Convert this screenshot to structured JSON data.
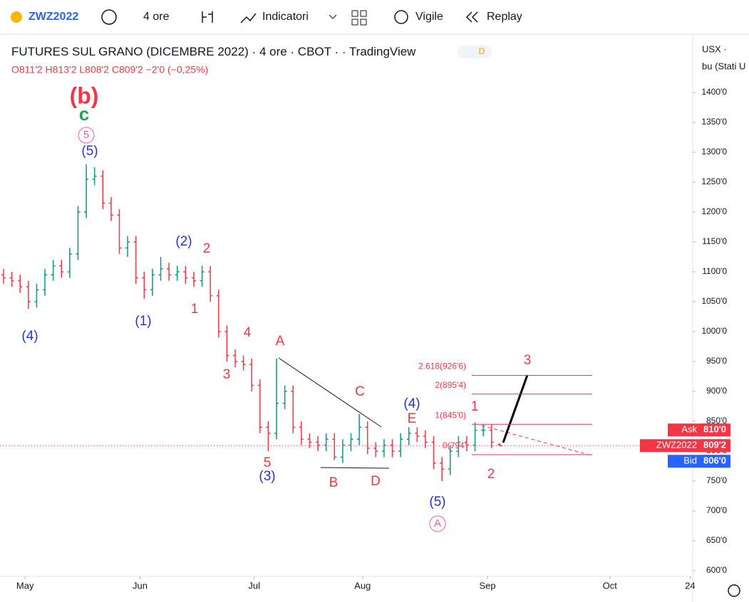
{
  "toolbar": {
    "symbol": "ZWZ2022",
    "interval": "4 ore",
    "indicators": "Indicatori",
    "alert": "Vigile",
    "replay": "Replay"
  },
  "legend": {
    "title": "FUTURES SUL GRANO (DICEMBRE 2022)",
    "interval": "4 ore",
    "exchange": "CBOT",
    "source": "TradingView",
    "badge": "D",
    "ohlc": "O811'2 H813'2 L808'2 C809'2 −2'0 (−0,25%)"
  },
  "price_axis": {
    "currency": "USX ·",
    "unit": "bu (Stati U"
  },
  "chart_data": {
    "type": "ohlc",
    "up_color": "#089981",
    "down_color": "#f23645",
    "xlim": [
      0,
      83.4
    ],
    "ylim": [
      600,
      1400
    ],
    "yticks": [
      {
        "value": 1400,
        "label": "1400'0"
      },
      {
        "value": 1350,
        "label": "1350'0"
      },
      {
        "value": 1300,
        "label": "1300'0"
      },
      {
        "value": 1250,
        "label": "1250'0"
      },
      {
        "value": 1200,
        "label": "1200'0"
      },
      {
        "value": 1150,
        "label": "1150'0"
      },
      {
        "value": 1100,
        "label": "1100'0"
      },
      {
        "value": 1050,
        "label": "1050'0"
      },
      {
        "value": 1000,
        "label": "1000'0"
      },
      {
        "value": 950,
        "label": "950'0"
      },
      {
        "value": 900,
        "label": "900'0"
      },
      {
        "value": 850,
        "label": "850'0"
      },
      {
        "value": 800,
        "label": "800'0"
      },
      {
        "value": 750,
        "label": "750'0"
      },
      {
        "value": 700,
        "label": "700'0"
      },
      {
        "value": 650,
        "label": "650'0"
      },
      {
        "value": 600,
        "label": "600'0"
      }
    ],
    "xticks": [
      {
        "value": 2.6,
        "label": "May"
      },
      {
        "value": 16.5,
        "label": "Jun"
      },
      {
        "value": 30.3,
        "label": "Jul"
      },
      {
        "value": 43.4,
        "label": "Aug"
      },
      {
        "value": 58.5,
        "label": "Sep"
      },
      {
        "value": 73.3,
        "label": "Oct"
      },
      {
        "value": 83,
        "label": "24"
      }
    ],
    "open": [
      1095,
      1090,
      1085,
      1075,
      1050,
      1070,
      1095,
      1110,
      1100,
      1130,
      1200,
      1255,
      1260,
      1215,
      1195,
      1140,
      1150,
      1090,
      1070,
      1095,
      1105,
      1095,
      1100,
      1090,
      1085,
      1100,
      1060,
      1000,
      960,
      950,
      945,
      910,
      840,
      830,
      880,
      900,
      840,
      820,
      815,
      810,
      820,
      790,
      810,
      820,
      840,
      805,
      800,
      810,
      800,
      820,
      830,
      825,
      815,
      780,
      770,
      800,
      815,
      810,
      835,
      835,
      811.25
    ],
    "high": [
      1105,
      1100,
      1095,
      1085,
      1080,
      1105,
      1120,
      1120,
      1140,
      1210,
      1280,
      1275,
      1270,
      1225,
      1205,
      1160,
      1160,
      1100,
      1105,
      1125,
      1115,
      1110,
      1110,
      1100,
      1110,
      1110,
      1070,
      1010,
      970,
      960,
      955,
      920,
      850,
      955,
      910,
      910,
      850,
      830,
      825,
      830,
      830,
      820,
      830,
      862,
      850,
      815,
      820,
      820,
      830,
      840,
      840,
      835,
      825,
      790,
      810,
      825,
      825,
      848,
      845,
      845,
      813.25
    ],
    "low": [
      1080,
      1075,
      1065,
      1038,
      1040,
      1060,
      1085,
      1090,
      1090,
      1120,
      1190,
      1245,
      1205,
      1185,
      1130,
      1125,
      1080,
      1055,
      1060,
      1085,
      1085,
      1085,
      1080,
      1075,
      1075,
      1050,
      990,
      950,
      940,
      935,
      900,
      830,
      800,
      820,
      870,
      830,
      810,
      805,
      800,
      800,
      785,
      780,
      800,
      810,
      795,
      790,
      790,
      790,
      790,
      810,
      815,
      805,
      770,
      750,
      760,
      790,
      800,
      800,
      825,
      805,
      808.25
    ],
    "close": [
      1090,
      1085,
      1075,
      1050,
      1070,
      1095,
      1110,
      1100,
      1130,
      1200,
      1255,
      1260,
      1215,
      1195,
      1140,
      1150,
      1090,
      1070,
      1095,
      1105,
      1095,
      1100,
      1090,
      1085,
      1100,
      1060,
      1000,
      960,
      950,
      945,
      910,
      840,
      830,
      880,
      900,
      840,
      820,
      815,
      810,
      820,
      790,
      810,
      820,
      840,
      805,
      800,
      810,
      800,
      820,
      830,
      825,
      815,
      780,
      770,
      800,
      815,
      810,
      835,
      835,
      815,
      809.25
    ],
    "fib_levels": [
      {
        "value": 926.75,
        "label": "2.618(926'6)"
      },
      {
        "value": 895.5,
        "label": "2(895'4)"
      },
      {
        "value": 845,
        "label": "1(845'0)"
      },
      {
        "value": 794,
        "label": "0(794'"
      }
    ],
    "price_labels": [
      {
        "name": "Ask",
        "value": 810,
        "label": "810'0",
        "color": "#f23645"
      },
      {
        "name": "ZWZ2022",
        "value": 809.25,
        "label": "809'2",
        "color": "#f23645"
      },
      {
        "name": "Bid",
        "value": 806,
        "label": "806'0",
        "color": "#2962ff"
      }
    ],
    "annotations": [
      {
        "text": "(b)",
        "color": "#f23645"
      },
      {
        "text": "c",
        "color": "#22a34a"
      },
      {
        "text": "5",
        "color": "#f06292"
      },
      {
        "text": "(5)",
        "color": "#2634c9"
      },
      {
        "text": "(4)",
        "color": "#2634c9"
      },
      {
        "text": "(1)",
        "color": "#2634c9"
      },
      {
        "text": "(2)",
        "color": "#2634c9"
      },
      {
        "text": "2",
        "color": "#f23645"
      },
      {
        "text": "1",
        "color": "#f23645"
      },
      {
        "text": "4",
        "color": "#f23645"
      },
      {
        "text": "3",
        "color": "#f23645"
      },
      {
        "text": "A",
        "color": "#f23645"
      },
      {
        "text": "5",
        "color": "#f23645"
      },
      {
        "text": "(3)",
        "color": "#2634c9"
      },
      {
        "text": "B",
        "color": "#f23645"
      },
      {
        "text": "C",
        "color": "#f23645"
      },
      {
        "text": "D",
        "color": "#f23645"
      },
      {
        "text": "(4)",
        "color": "#2634c9"
      },
      {
        "text": "E",
        "color": "#f23645"
      },
      {
        "text": "(5)",
        "color": "#2634c9"
      },
      {
        "text": "A",
        "color": "#f06292"
      },
      {
        "text": "1",
        "color": "#f23645"
      },
      {
        "text": "2",
        "color": "#f23645"
      },
      {
        "text": "3",
        "color": "#f23645"
      }
    ]
  }
}
